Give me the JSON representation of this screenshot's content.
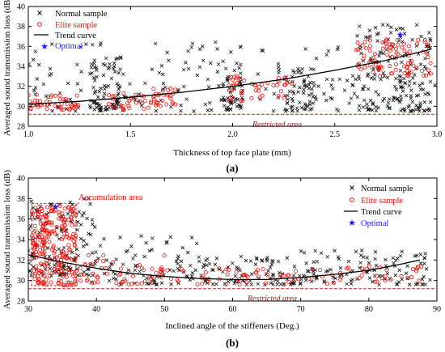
{
  "chart_data": [
    {
      "type": "scatter",
      "panel_label": "(a)",
      "xlabel": "Thickness of top face plate (mm)",
      "ylabel": "Averaged sound transmission loss (dB)",
      "xlim": [
        1.0,
        3.0
      ],
      "ylim": [
        28,
        40
      ],
      "xticks": [
        1.0,
        1.5,
        2.0,
        2.5,
        3.0
      ],
      "yticks": [
        28,
        30,
        32,
        34,
        36,
        38,
        40
      ],
      "legend_position": "top-left",
      "legend": [
        "Normal sample",
        "Elite sample",
        "Trend curve",
        "Optimal"
      ],
      "annotation": "Restricted area",
      "restricted_line_y": 29.2,
      "trend_curve": {
        "x": [
          1.0,
          1.25,
          1.5,
          1.75,
          2.0,
          2.25,
          2.5,
          2.75,
          2.97
        ],
        "y": [
          30.2,
          30.5,
          30.9,
          31.4,
          32.0,
          32.7,
          33.6,
          34.6,
          35.7
        ]
      },
      "optimal": {
        "x": 2.82,
        "y": 37.2
      },
      "normal": {
        "clusters": [
          {
            "x": [
              1.0,
              3.0
            ],
            "y": [
              29.5,
              36.5
            ],
            "n": 220
          },
          {
            "x": [
              1.3,
              1.45
            ],
            "y": [
              29.5,
              35.0
            ],
            "n": 70
          },
          {
            "x": [
              1.95,
              2.05
            ],
            "y": [
              29.6,
              34.2
            ],
            "n": 45
          },
          {
            "x": [
              2.25,
              2.4
            ],
            "y": [
              29.6,
              34.0
            ],
            "n": 50
          },
          {
            "x": [
              2.6,
              2.97
            ],
            "y": [
              29.5,
              38.2
            ],
            "n": 150
          }
        ]
      },
      "elite": {
        "clusters": [
          {
            "x": [
              1.0,
              1.25
            ],
            "y": [
              29.6,
              31.2
            ],
            "n": 45
          },
          {
            "x": [
              1.37,
              1.6
            ],
            "y": [
              29.6,
              31.5
            ],
            "n": 30
          },
          {
            "x": [
              1.6,
              1.72
            ],
            "y": [
              30.0,
              31.8
            ],
            "n": 30
          },
          {
            "x": [
              1.98,
              2.06
            ],
            "y": [
              30.5,
              33.0
            ],
            "n": 20
          },
          {
            "x": [
              2.08,
              2.3
            ],
            "y": [
              30.8,
              33.0
            ],
            "n": 25
          },
          {
            "x": [
              2.6,
              2.97
            ],
            "y": [
              33.0,
              36.8
            ],
            "n": 90
          }
        ]
      }
    },
    {
      "type": "scatter",
      "panel_label": "(b)",
      "xlabel": "Inclined angle of the stiffeners (Deg.)",
      "ylabel": "Averaged sound transmission loss (dB)",
      "xlim": [
        30,
        90
      ],
      "ylim": [
        28,
        40
      ],
      "xticks": [
        30,
        40,
        50,
        60,
        70,
        80,
        90
      ],
      "yticks": [
        28,
        30,
        32,
        34,
        36,
        38,
        40
      ],
      "legend_position": "top-right",
      "legend": [
        "Normal sample",
        "Elite sample",
        "Trend curve",
        "Optimal"
      ],
      "annotations": [
        "Accumulation area",
        "Restricted area"
      ],
      "restricted_line_y": 29.2,
      "accumulation_box": {
        "x": [
          30.5,
          37.0
        ],
        "y": [
          29.5,
          37.5
        ]
      },
      "trend_curve": {
        "x": [
          30,
          35,
          40,
          45,
          50,
          55,
          60,
          65,
          70,
          75,
          80,
          84,
          87.5
        ],
        "y": [
          32.5,
          31.8,
          31.2,
          30.7,
          30.4,
          30.2,
          30.1,
          30.1,
          30.3,
          30.6,
          31.0,
          31.5,
          32.0
        ]
      },
      "optimal": {
        "x": 34.0,
        "y": 37.2
      },
      "normal": {
        "clusters": [
          {
            "x": [
              30,
              40
            ],
            "y": [
              30.5,
              38.0
            ],
            "n": 110
          },
          {
            "x": [
              38,
              55
            ],
            "y": [
              29.6,
              34.5
            ],
            "n": 90
          },
          {
            "x": [
              55,
              70
            ],
            "y": [
              29.6,
              32.5
            ],
            "n": 90
          },
          {
            "x": [
              70,
              89
            ],
            "y": [
              29.6,
              33.0
            ],
            "n": 110
          }
        ]
      },
      "elite": {
        "clusters": [
          {
            "x": [
              30.5,
              37
            ],
            "y": [
              29.5,
              37.3
            ],
            "n": 240
          },
          {
            "x": [
              37,
              50
            ],
            "y": [
              29.6,
              32.5
            ],
            "n": 60
          },
          {
            "x": [
              50,
              75
            ],
            "y": [
              29.6,
              31.2
            ],
            "n": 55
          },
          {
            "x": [
              75,
              88
            ],
            "y": [
              29.6,
              31.5
            ],
            "n": 30
          }
        ]
      }
    }
  ]
}
